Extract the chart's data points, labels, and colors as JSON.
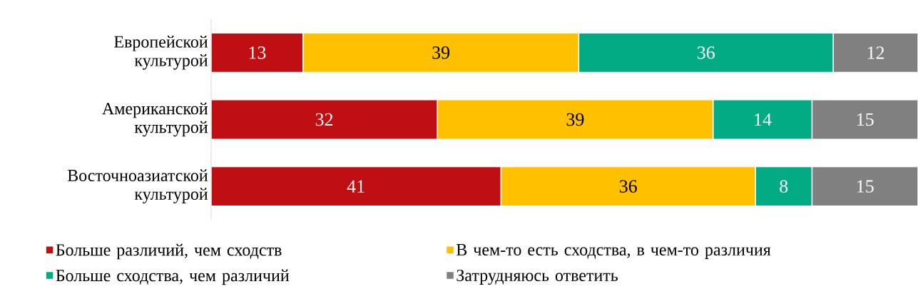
{
  "chart_data": {
    "type": "bar",
    "orientation": "horizontal",
    "stacked": true,
    "data_labels": true,
    "legend": "bottom",
    "categories": [
      "Европейской культурой",
      "Американской культурой",
      "Восточноазиатской культурой"
    ],
    "series": [
      {
        "name": "Больше различий, чем сходств",
        "color": "#c00f12",
        "values": [
          13,
          32,
          41
        ]
      },
      {
        "name": "В чем-то есть сходства, в чем-то различия",
        "color": "#ffc000",
        "values": [
          39,
          39,
          36
        ]
      },
      {
        "name": "Больше сходства, чем различий",
        "color": "#03ab84",
        "values": [
          36,
          14,
          8
        ]
      },
      {
        "name": "Затрудняюсь ответить",
        "color": "#808080",
        "values": [
          12,
          15,
          15
        ]
      }
    ]
  }
}
